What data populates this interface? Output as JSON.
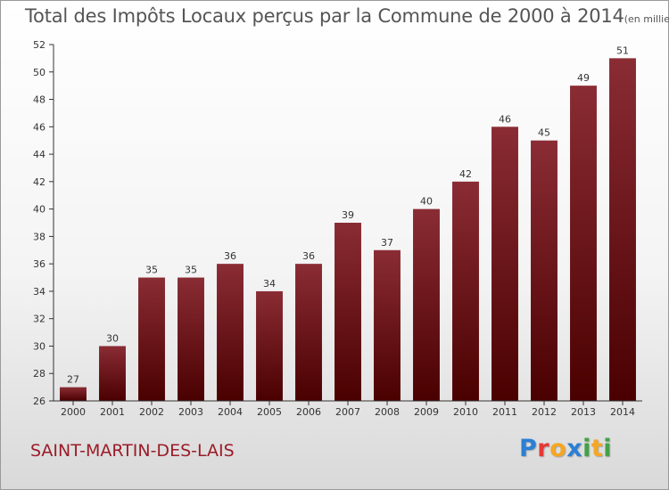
{
  "header": {
    "title": "Total des Impôts Locaux perçus par la Commune de 2000 à 2014",
    "title_unit": "(en milliers d'€)"
  },
  "footer": {
    "commune": "SAINT-MARTIN-DES-LAIS",
    "logo_letters": [
      "P",
      "r",
      "o",
      "x",
      "i",
      "t",
      "i"
    ],
    "logo_colors": [
      "#2b7fd4",
      "#e53935",
      "#f5a623",
      "#2b7fd4",
      "#43a047",
      "#f5a623",
      "#43a047"
    ]
  },
  "colors": {
    "bar_top": "#8a2c34",
    "bar_bottom": "#4a0000",
    "axis": "#333333",
    "text": "#333333",
    "commune": "#9b1c28"
  },
  "chart_data": {
    "type": "bar",
    "title": "Total des Impôts Locaux perçus par la Commune de 2000 à 2014",
    "xlabel": "",
    "ylabel": "",
    "categories": [
      "2000",
      "2001",
      "2002",
      "2003",
      "2004",
      "2005",
      "2006",
      "2007",
      "2008",
      "2009",
      "2010",
      "2011",
      "2012",
      "2013",
      "2014"
    ],
    "values": [
      27,
      30,
      35,
      35,
      36,
      34,
      36,
      39,
      37,
      40,
      42,
      46,
      45,
      49,
      51
    ],
    "ylim": [
      26,
      52
    ],
    "yticks": [
      26,
      28,
      30,
      32,
      34,
      36,
      38,
      40,
      42,
      44,
      46,
      48,
      50,
      52
    ],
    "grid": false,
    "legend": "none"
  }
}
